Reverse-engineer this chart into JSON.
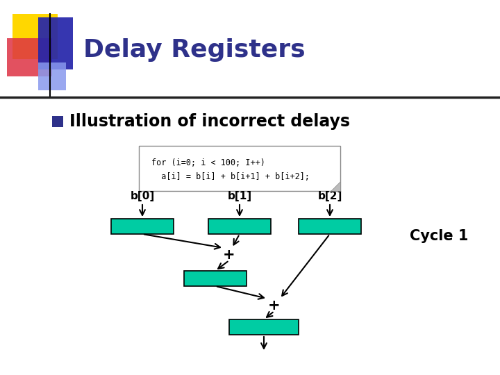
{
  "title": "Delay Registers",
  "title_color": "#2E318A",
  "title_fontsize": 26,
  "bg_color": "#FFFFFF",
  "subtitle": "Illustration of incorrect delays",
  "subtitle_fontsize": 17,
  "subtitle_color": "#000000",
  "bullet_color": "#2E318A",
  "code_lines": [
    "for (i=0; i < 100; I++)",
    "  a[i] = b[i] + b[i+1] + b[i+2];"
  ],
  "register_color": "#00CCA3",
  "register_border": "#000000",
  "labels": [
    "b[0]",
    "b[1]",
    "b[2]"
  ],
  "cycle_label": "Cycle 1",
  "header_bar_color": "#111111"
}
